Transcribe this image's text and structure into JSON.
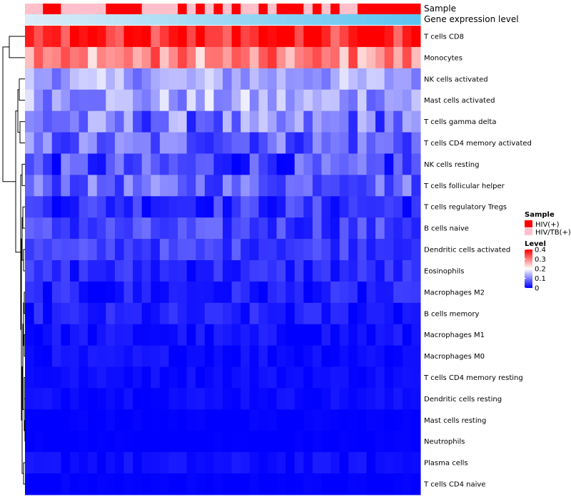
{
  "chart_data": {
    "type": "heatmap",
    "title": "",
    "annotation_tracks": [
      "Sample",
      "Gene expression level"
    ],
    "rows": [
      "T cells CD8",
      "Monocytes",
      "NK cells activated",
      "Mast cells activated",
      "T cells gamma delta",
      "T cells CD4 memory activated",
      "NK cells resting",
      "T cells follicular helper",
      "T cells regulatory  Tregs",
      "B cells naive",
      "Dendritic cells activated",
      "Eosinophils",
      "Macrophages M2",
      "B cells memory",
      "Macrophages M1",
      "Macrophages M0",
      "T cells CD4 memory resting",
      "Dendritic cells resting",
      "Mast cells resting",
      "Neutrophils",
      "Plasma cells",
      "T cells CD4 naive"
    ],
    "n_samples": 44,
    "sample_groups": "PPHHPPPPPHHHHPPPPHPHPHPHPPHPHHHPHPHPPHHHHHHH",
    "gene_expression_level": "increasing from left to right (light to darker blue)",
    "row_mean_levels": [
      0.36,
      0.29,
      0.13,
      0.13,
      0.09,
      0.08,
      0.05,
      0.08,
      0.04,
      0.05,
      0.05,
      0.03,
      0.02,
      0.02,
      0.01,
      0.01,
      0.01,
      0.01,
      0.0,
      0.0,
      0.01,
      0.0
    ],
    "row_variation": [
      0.06,
      0.07,
      0.05,
      0.06,
      0.07,
      0.06,
      0.06,
      0.05,
      0.04,
      0.04,
      0.03,
      0.03,
      0.03,
      0.025,
      0.02,
      0.015,
      0.01,
      0.01,
      0.006,
      0.003,
      0.012,
      0.006
    ],
    "row_dendrogram": "hierarchical clustering tree drawn on the left; T cells CD8 + Monocytes form the top cluster",
    "color_scale": {
      "name": "Level",
      "domain": [
        0,
        0.4
      ],
      "ticks": [
        "0.4",
        "0.3",
        "0.2",
        "0.1",
        "0"
      ],
      "tick_values": [
        0.4,
        0.3,
        0.2,
        0.1,
        0
      ],
      "low": "#0000ff",
      "mid": "#ffffff",
      "high": "#ff0000"
    },
    "legend": {
      "sample_title": "Sample",
      "sample_items": [
        {
          "label": "HIV(+)",
          "color": "#ff0000"
        },
        {
          "label": "HIV/TB(+)",
          "color": "#ffc0cb"
        }
      ],
      "level_title": "Level"
    }
  }
}
